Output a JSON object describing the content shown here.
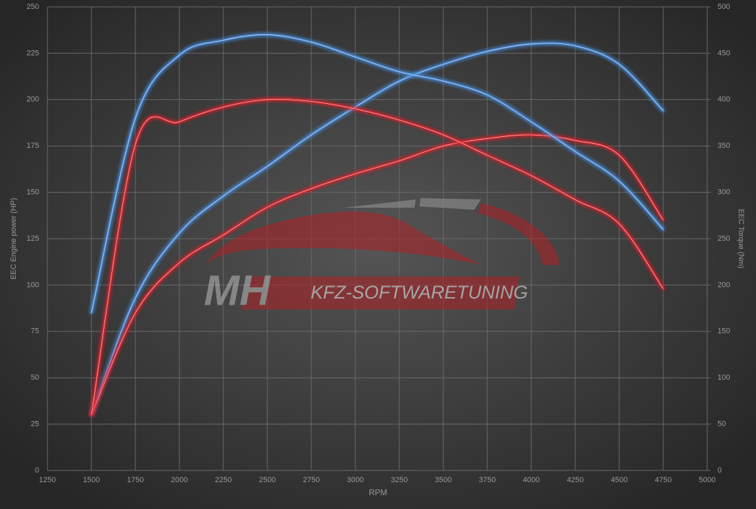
{
  "chart_data": {
    "type": "line",
    "xlabel": "RPM",
    "ylabel": "EEC Engine power (HP)",
    "y2label": "EEC Torque (Nm)",
    "watermark": [
      "MH",
      "KFZ-SOFTWARETUNING"
    ],
    "x": [
      1500,
      1750,
      2000,
      2250,
      2500,
      2750,
      3000,
      3250,
      3500,
      3750,
      4000,
      4250,
      4500,
      4750
    ],
    "xlim": [
      1250,
      5000
    ],
    "xticks": [
      1250,
      1500,
      1750,
      2000,
      2250,
      2500,
      2750,
      3000,
      3250,
      3500,
      3750,
      4000,
      4250,
      4500,
      4750,
      5000
    ],
    "ylim": [
      0,
      250
    ],
    "yticks": [
      0,
      25,
      50,
      75,
      100,
      125,
      150,
      175,
      200,
      225,
      250
    ],
    "y2lim": [
      0,
      500
    ],
    "y2ticks": [
      0,
      50,
      100,
      150,
      200,
      250,
      300,
      350,
      400,
      450,
      500
    ],
    "grid": true,
    "series": [
      {
        "color": "#4a90e2",
        "values": [
          30,
          93,
          128,
          148,
          164,
          181,
          196,
          210,
          219,
          226,
          230,
          229,
          219,
          194
        ]
      },
      {
        "color": "#e0282e",
        "values": [
          30,
          85,
          112,
          127,
          142,
          152,
          160,
          167,
          175,
          179,
          181,
          178,
          170,
          135
        ]
      },
      {
        "color": "#4a90e2",
        "axis": "y2",
        "values": [
          170,
          380,
          448,
          464,
          470,
          462,
          446,
          430,
          420,
          405,
          376,
          344,
          312,
          260
        ]
      },
      {
        "color": "#e0282e",
        "axis": "y2",
        "values": [
          60,
          352,
          376,
          392,
          400,
          398,
          390,
          378,
          362,
          340,
          318,
          292,
          266,
          196
        ]
      }
    ]
  }
}
